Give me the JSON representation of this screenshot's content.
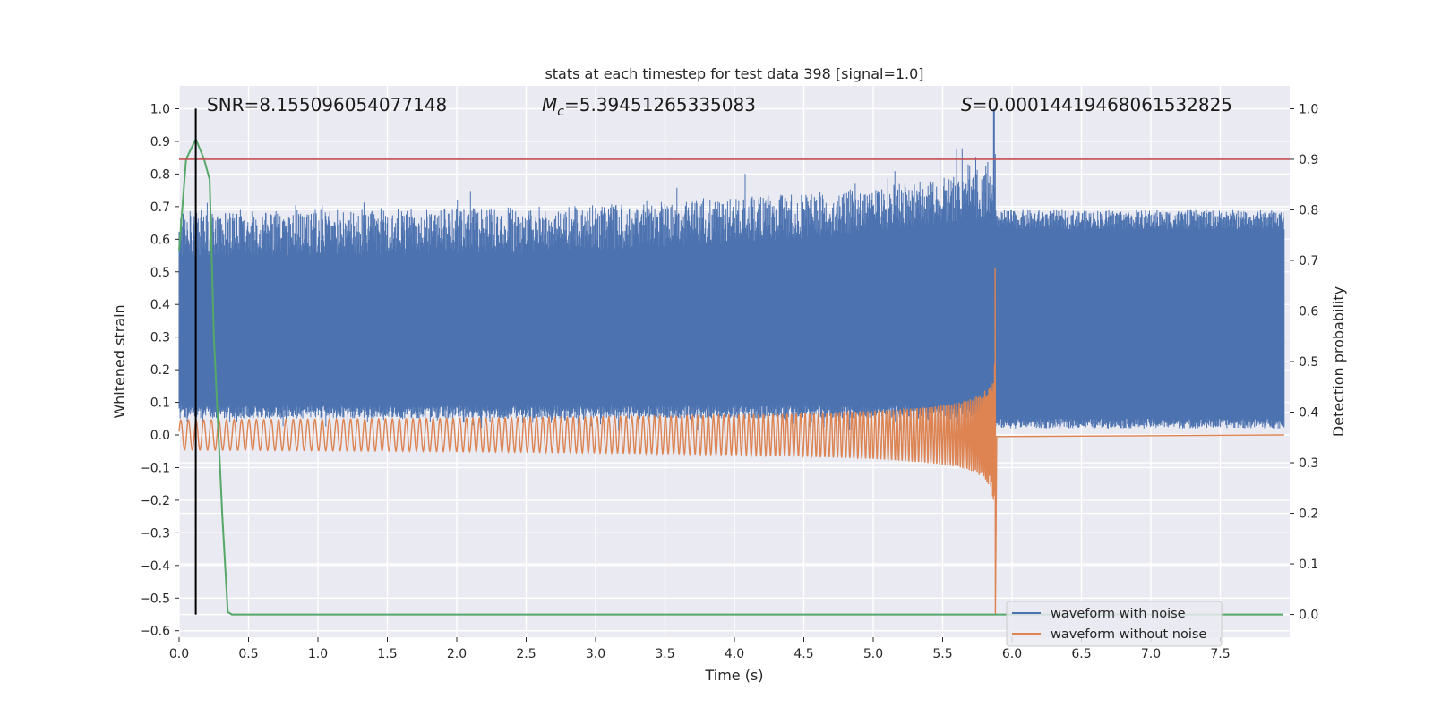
{
  "chart_data": {
    "type": "line",
    "title": "stats at each timestep for test data 398 [signal=1.0]",
    "xlabel": "Time (s)",
    "ylabel_left": "Whitened strain",
    "ylabel_right": "Detection probability",
    "xlim": [
      0.0,
      8.0
    ],
    "ylim_left": [
      -0.62,
      1.07
    ],
    "ylim_right": [
      -0.045,
      1.045
    ],
    "x_ticks": [
      0.0,
      0.5,
      1.0,
      1.5,
      2.0,
      2.5,
      3.0,
      3.5,
      4.0,
      4.5,
      5.0,
      5.5,
      6.0,
      6.5,
      7.0,
      7.5
    ],
    "x_tick_labels": [
      "0.0",
      "0.5",
      "1.0",
      "1.5",
      "2.0",
      "2.5",
      "3.0",
      "3.5",
      "4.0",
      "4.5",
      "5.0",
      "5.5",
      "6.0",
      "6.5",
      "7.0",
      "7.5"
    ],
    "y_left_ticks": [
      1.0,
      0.9,
      0.8,
      0.7,
      0.6,
      0.5,
      0.4,
      0.3,
      0.2,
      0.1,
      0.0,
      -0.1,
      -0.2,
      -0.3,
      -0.4,
      -0.5,
      -0.6
    ],
    "y_left_tick_labels": [
      "1.0",
      "0.9",
      "0.8",
      "0.7",
      "0.6",
      "0.5",
      "0.4",
      "0.3",
      "0.2",
      "0.1",
      "0.0",
      "−0.1",
      "−0.2",
      "−0.3",
      "−0.4",
      "−0.5",
      "−0.6"
    ],
    "y_right_ticks": [
      1.0,
      0.9,
      0.8,
      0.7,
      0.6,
      0.5,
      0.4,
      0.3,
      0.2,
      0.1,
      0.0
    ],
    "y_right_tick_labels": [
      "1.0",
      "0.9",
      "0.8",
      "0.7",
      "0.6",
      "0.5",
      "0.4",
      "0.3",
      "0.2",
      "0.1",
      "0.0"
    ],
    "annotations": {
      "snr": "SNR=8.155096054077148",
      "mc_symbol": "M",
      "mc_sub": "c",
      "mc_value": "=5.39451265335083",
      "s_symbol": "S",
      "s_value": "=0.00014419468061532825"
    },
    "legend": {
      "location": "lower right",
      "entries": [
        "waveform with noise",
        "waveform without noise"
      ]
    },
    "threshold_line": {
      "axis": "right",
      "value": 0.9,
      "color": "#c44e52"
    },
    "detection_marker": {
      "x": 0.12,
      "color": "#000000"
    },
    "merger_time": 5.88,
    "series": [
      {
        "name": "waveform with noise",
        "axis": "left",
        "color": "#4c72b0",
        "description_values": {
          "baseline_min": 0.0,
          "typical_max": 0.68,
          "peak": 1.0,
          "peak_x": 5.87
        }
      },
      {
        "name": "waveform without noise",
        "axis": "left",
        "color": "#dd8452",
        "description_values": {
          "start_amplitude": 0.045,
          "peak_max": 0.51,
          "peak_min": -0.55,
          "end_x": 5.88
        }
      },
      {
        "name": "Detection probability",
        "axis": "right",
        "color": "#55a868",
        "x": [
          0.0,
          0.05,
          0.12,
          0.18,
          0.22,
          0.25,
          0.31,
          0.35,
          0.38,
          0.45,
          0.6,
          1.0,
          2.0,
          3.0,
          4.0,
          5.0,
          6.0,
          7.0,
          7.95
        ],
        "values": [
          0.72,
          0.9,
          0.94,
          0.9,
          0.86,
          0.55,
          0.2,
          0.005,
          0.0,
          0.0,
          0.0,
          0.0,
          0.0,
          0.0,
          0.0,
          0.0,
          0.0,
          0.0,
          0.0
        ]
      }
    ]
  }
}
